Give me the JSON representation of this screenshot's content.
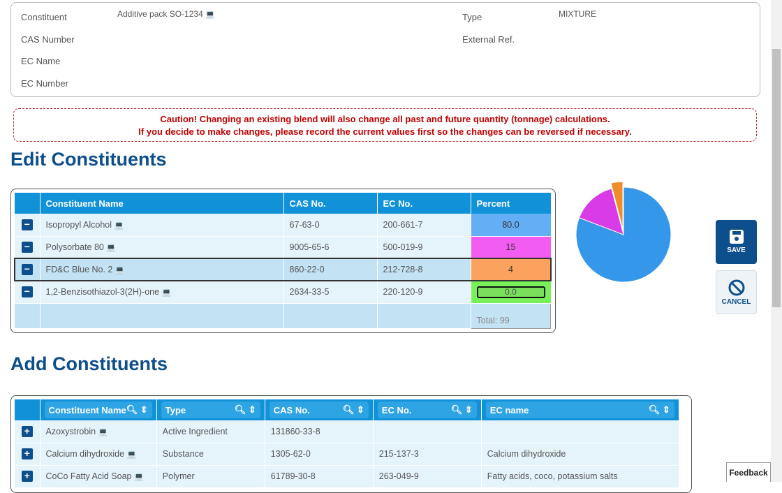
{
  "info": {
    "constituent_label": "Constituent",
    "constituent_value": "Additive pack SO-1234",
    "cas_label": "CAS Number",
    "ecname_label": "EC Name",
    "ecnumber_label": "EC Number",
    "type_label": "Type",
    "type_value": "MIXTURE",
    "extref_label": "External Ref."
  },
  "caution": {
    "line1": "Caution! Changing an existing blend will also change all past and future quantity (tonnage) calculations.",
    "line2": "If you decide to make changes, please record the current values first so the changes can be reversed if necessary."
  },
  "edit": {
    "title": "Edit Constituents",
    "headers": [
      "Constituent Name",
      "CAS No.",
      "EC No.",
      "Percent"
    ],
    "rows": [
      {
        "name": "Isopropyl Alcohol",
        "cas": "67-63-0",
        "ec": "200-661-7",
        "percent": "80.0",
        "color": "#63aef5"
      },
      {
        "name": "Polysorbate 80",
        "cas": "9005-65-6",
        "ec": "500-019-9",
        "percent": "15",
        "color": "#f25cf0"
      },
      {
        "name": "FD&C Blue No. 2",
        "cas": "860-22-0",
        "ec": "212-728-8",
        "percent": "4",
        "color": "#fba35e"
      },
      {
        "name": "1,2-Benzisothiazol-3(2H)-one",
        "cas": "2634-33-5",
        "ec": "220-120-9",
        "percent": "0.0",
        "color": "#78f05a"
      }
    ],
    "total": "Total: 99"
  },
  "chart_data": {
    "type": "pie",
    "values": [
      80,
      15,
      4,
      0
    ],
    "colors": [
      "#3597ea",
      "#d93ce6",
      "#f08c2a",
      "#5ad83c"
    ],
    "exploded_index": 2
  },
  "actions": {
    "save": "SAVE",
    "cancel": "CANCEL"
  },
  "add": {
    "title": "Add Constituents",
    "headers": [
      "Constituent Name",
      "Type",
      "CAS No.",
      "EC No.",
      "EC name"
    ],
    "rows": [
      {
        "name": "Azoxystrobin",
        "type": "Active Ingredient",
        "cas": "131860-33-8",
        "ec": "",
        "ecname": ""
      },
      {
        "name": "Calcium dihydroxide",
        "type": "Substance",
        "cas": "1305-62-0",
        "ec": "215-137-3",
        "ecname": "Calcium dihydroxide"
      },
      {
        "name": "CoCo Fatty Acid Soap",
        "type": "Polymer",
        "cas": "61789-30-8",
        "ec": "263-049-9",
        "ecname": "Fatty acids, coco, potassium salts"
      }
    ]
  },
  "feedback": "Feedback"
}
